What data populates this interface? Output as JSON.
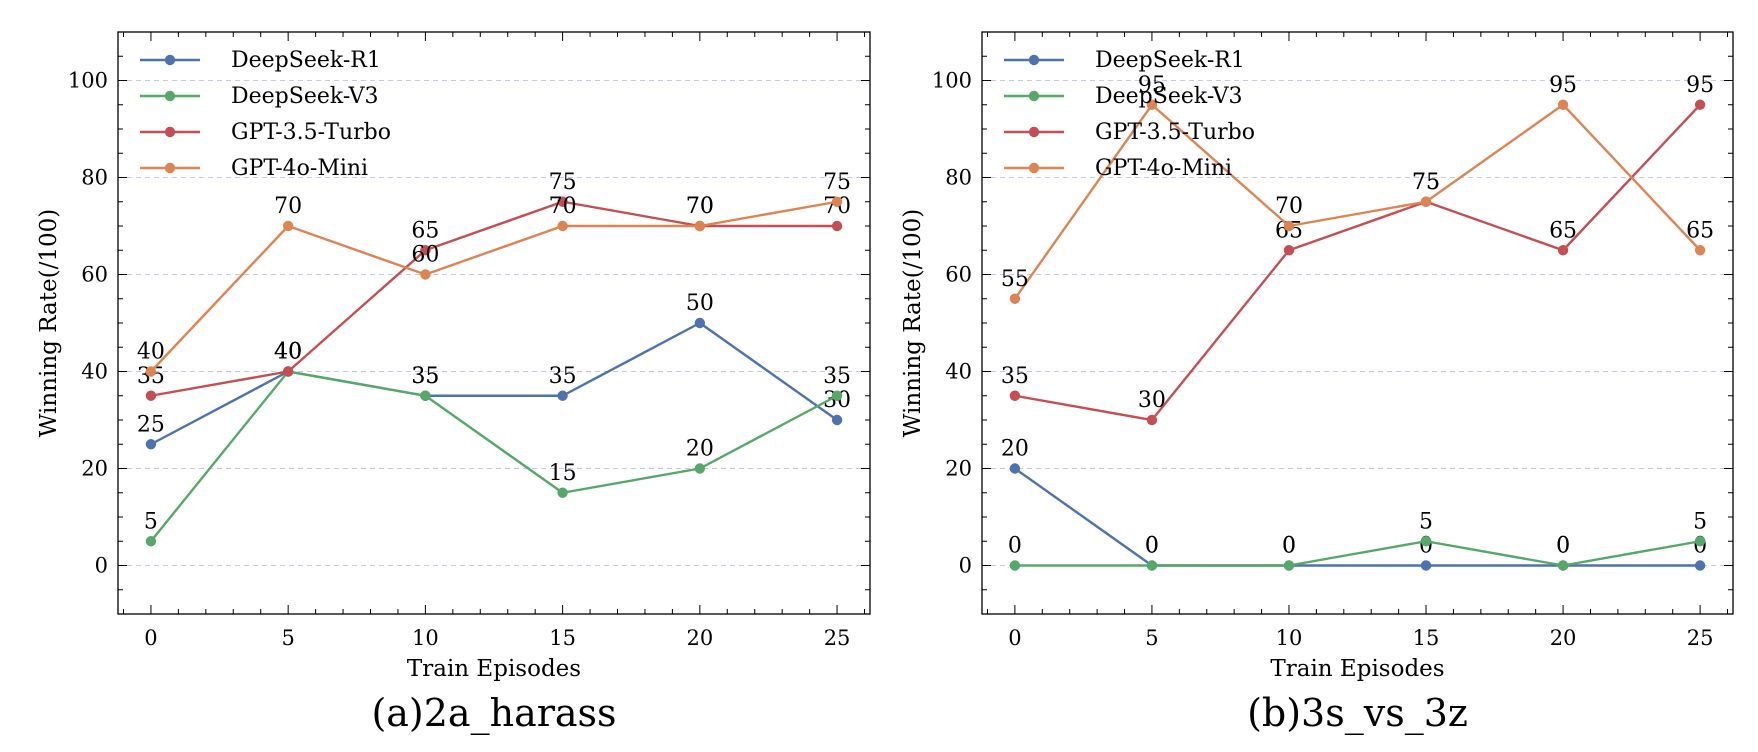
{
  "chart_data": [
    {
      "type": "line",
      "title": "(a)2a_harass",
      "xlabel": "Train Episodes",
      "ylabel": "Winning Rate(/100)",
      "x": [
        0,
        5,
        10,
        15,
        20,
        25
      ],
      "xlim": [
        -1.2,
        26.2
      ],
      "ylim": [
        -10,
        110
      ],
      "xticks": [
        0,
        5,
        10,
        15,
        20,
        25
      ],
      "yticks": [
        0,
        20,
        40,
        60,
        80,
        100
      ],
      "legend": "top-left",
      "grid": "horizontal-dashed",
      "series": [
        {
          "name": "DeepSeek-R1",
          "color": "#4c72b0",
          "values": [
            25,
            40,
            35,
            35,
            50,
            30
          ]
        },
        {
          "name": "DeepSeek-V3",
          "color": "#55a868",
          "values": [
            5,
            40,
            35,
            15,
            20,
            35
          ]
        },
        {
          "name": "GPT-3.5-Turbo",
          "color": "#c44e52",
          "values": [
            35,
            40,
            65,
            75,
            70,
            70
          ]
        },
        {
          "name": "GPT-4o-Mini",
          "color": "#dd8452",
          "values": [
            40,
            70,
            60,
            70,
            70,
            75
          ]
        }
      ]
    },
    {
      "type": "line",
      "title": "(b)3s_vs_3z",
      "xlabel": "Train Episodes",
      "ylabel": "Winning Rate(/100)",
      "x": [
        0,
        5,
        10,
        15,
        20,
        25
      ],
      "xlim": [
        -1.2,
        26.2
      ],
      "ylim": [
        -10,
        110
      ],
      "xticks": [
        0,
        5,
        10,
        15,
        20,
        25
      ],
      "yticks": [
        0,
        20,
        40,
        60,
        80,
        100
      ],
      "legend": "top-left",
      "grid": "horizontal-dashed",
      "series": [
        {
          "name": "DeepSeek-R1",
          "color": "#4c72b0",
          "values": [
            20,
            0,
            0,
            0,
            0,
            0
          ]
        },
        {
          "name": "DeepSeek-V3",
          "color": "#55a868",
          "values": [
            0,
            0,
            0,
            5,
            0,
            5
          ]
        },
        {
          "name": "GPT-3.5-Turbo",
          "color": "#c44e52",
          "values": [
            35,
            30,
            65,
            75,
            65,
            95
          ]
        },
        {
          "name": "GPT-4o-Mini",
          "color": "#dd8452",
          "values": [
            55,
            95,
            70,
            75,
            95,
            65
          ]
        }
      ]
    }
  ]
}
